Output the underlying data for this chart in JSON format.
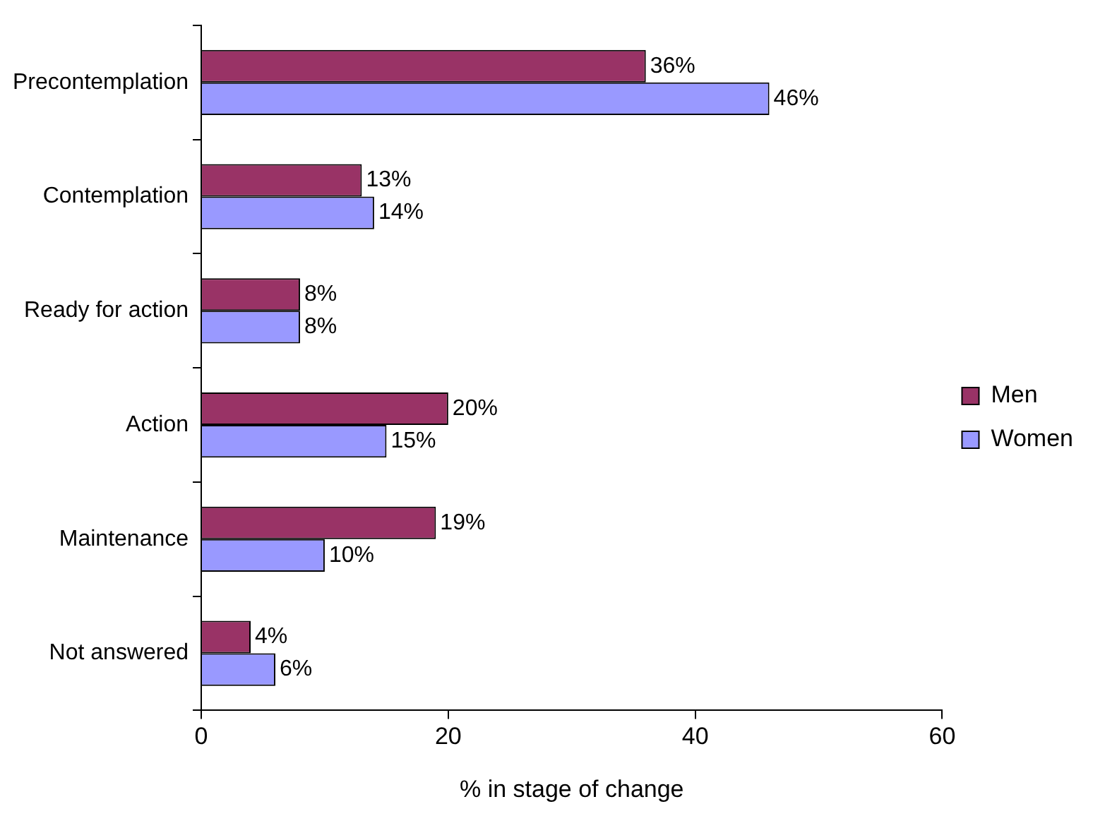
{
  "chart_data": {
    "type": "bar",
    "orientation": "horizontal",
    "xlabel": "% in stage of change",
    "categories": [
      "Precontemplation",
      "Contemplation",
      "Ready for action",
      "Action",
      "Maintenance",
      "Not answered"
    ],
    "series": [
      {
        "name": "Men",
        "color": "#993366",
        "values": [
          36,
          13,
          8,
          20,
          19,
          4
        ],
        "value_labels": [
          "36%",
          "13%",
          "8%",
          "20%",
          "19%",
          "4%"
        ]
      },
      {
        "name": "Women",
        "color": "#9999ff",
        "values": [
          46,
          14,
          8,
          15,
          10,
          6
        ],
        "value_labels": [
          "46%",
          "14%",
          "8%",
          "15%",
          "10%",
          "6%"
        ]
      }
    ],
    "xlim": [
      0,
      60
    ],
    "xticks": [
      0,
      20,
      40,
      60
    ],
    "grid": false,
    "legend": "right"
  }
}
